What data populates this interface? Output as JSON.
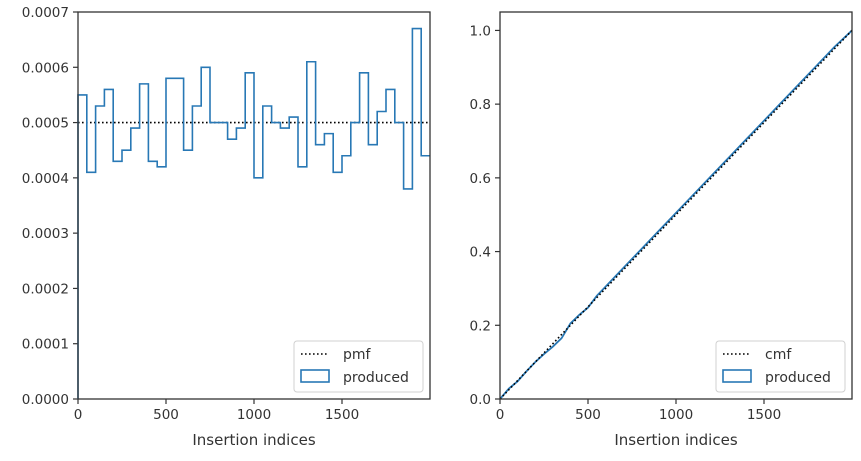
{
  "chart_data": [
    {
      "type": "step",
      "xlabel": "Insertion indices",
      "ylabel": "",
      "xlim": [
        0,
        2000
      ],
      "ylim": [
        0,
        0.0007
      ],
      "xticks": [
        0,
        500,
        1000,
        1500
      ],
      "yticks": [
        "0.0000",
        "0.0001",
        "0.0002",
        "0.0003",
        "0.0004",
        "0.0005",
        "0.0006",
        "0.0007"
      ],
      "legend_position": "bottom-right",
      "series": [
        {
          "name": "pmf",
          "style": "dotted",
          "color": "#000000",
          "x": [
            0,
            2000
          ],
          "values": [
            0.0005,
            0.0005
          ]
        },
        {
          "name": "produced",
          "style": "step",
          "color": "#2878b5",
          "bin_width": 50,
          "values": [
            0.00055,
            0.00041,
            0.00053,
            0.00056,
            0.00043,
            0.00045,
            0.00049,
            0.00057,
            0.00043,
            0.00042,
            0.00058,
            0.00058,
            0.00045,
            0.00053,
            0.0006,
            0.0005,
            0.0005,
            0.00047,
            0.00049,
            0.00059,
            0.0004,
            0.00053,
            0.0005,
            0.00049,
            0.00051,
            0.00042,
            0.00061,
            0.00046,
            0.00048,
            0.00041,
            0.00044,
            0.0005,
            0.00059,
            0.00046,
            0.00052,
            0.00056,
            0.0005,
            0.00038,
            0.00067,
            0.00044
          ]
        }
      ]
    },
    {
      "type": "line",
      "xlabel": "Insertion indices",
      "ylabel": "",
      "xlim": [
        0,
        2000
      ],
      "ylim": [
        0,
        1.05
      ],
      "xticks": [
        0,
        500,
        1000,
        1500
      ],
      "yticks": [
        "0.0",
        "0.2",
        "0.4",
        "0.6",
        "0.8",
        "1.0"
      ],
      "legend_position": "bottom-right",
      "series": [
        {
          "name": "cmf",
          "style": "dotted",
          "color": "#000000",
          "x": [
            0,
            2000
          ],
          "values": [
            0,
            1.0
          ]
        },
        {
          "name": "produced",
          "style": "line",
          "color": "#2878b5",
          "x": [
            0,
            50,
            100,
            150,
            200,
            250,
            300,
            350,
            400,
            450,
            500,
            550,
            600,
            700,
            800,
            900,
            1000,
            1100,
            1200,
            1300,
            1400,
            1500,
            1600,
            1700,
            1800,
            1900,
            2000
          ],
          "values": [
            0,
            0.028,
            0.048,
            0.075,
            0.1,
            0.122,
            0.142,
            0.165,
            0.205,
            0.228,
            0.248,
            0.28,
            0.305,
            0.355,
            0.405,
            0.455,
            0.505,
            0.555,
            0.605,
            0.655,
            0.705,
            0.755,
            0.805,
            0.855,
            0.905,
            0.955,
            1.0
          ]
        }
      ]
    }
  ]
}
